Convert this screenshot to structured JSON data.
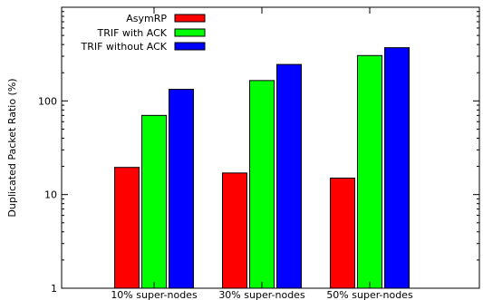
{
  "chart_data": {
    "type": "bar",
    "categories": [
      "10% super-nodes",
      "30% super-nodes",
      "50% super-nodes"
    ],
    "series": [
      {
        "name": "AsymRP",
        "color": "#ff0000",
        "values": [
          19.5,
          17,
          15
        ]
      },
      {
        "name": "TRIF with ACK",
        "color": "#00ff00",
        "values": [
          70,
          165,
          305
        ]
      },
      {
        "name": "TRIF without ACK",
        "color": "#0000ff",
        "values": [
          133,
          245,
          370
        ]
      }
    ],
    "title": "",
    "xlabel": "",
    "ylabel": "Duplicated Packet Ratio (%)",
    "yscale": "log",
    "ylim": [
      1,
      1000
    ],
    "yticks": [
      {
        "value": 1,
        "label": "1"
      },
      {
        "value": 10,
        "label": "10"
      },
      {
        "value": 100,
        "label": "100"
      }
    ],
    "grid": false,
    "legend_position": "top-center"
  }
}
